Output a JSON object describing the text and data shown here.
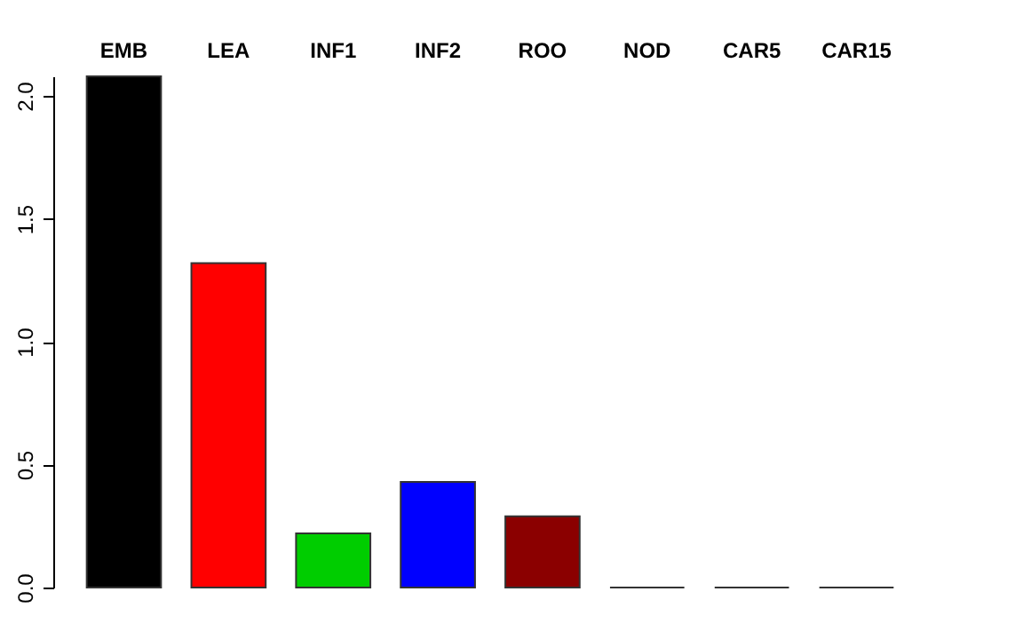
{
  "chart_data": {
    "type": "bar",
    "categories": [
      "EMB",
      "LEA",
      "INF1",
      "INF2",
      "ROO",
      "NOD",
      "CAR5",
      "CAR15"
    ],
    "values": [
      2.08,
      1.32,
      0.22,
      0.43,
      0.29,
      0,
      0,
      0
    ],
    "colors": [
      "#000000",
      "#ff0000",
      "#00cd00",
      "#0000ff",
      "#8b0000",
      "#333333",
      "#333333",
      "#333333"
    ],
    "ylim": [
      0,
      2.08
    ],
    "yticks": [
      {
        "value": 0,
        "label": "0.0"
      },
      {
        "value": 0.5,
        "label": "0.5"
      },
      {
        "value": 1,
        "label": "1.0"
      },
      {
        "value": 1.5,
        "label": "1.5"
      },
      {
        "value": 2,
        "label": "2.0"
      }
    ],
    "grid": false,
    "legend": false
  }
}
